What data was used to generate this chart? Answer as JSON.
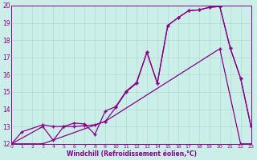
{
  "xlabel": "Windchill (Refroidissement éolien,°C)",
  "bg_color": "#cceee8",
  "line_color": "#880088",
  "grid_color": "#aaddcc",
  "xlim": [
    0,
    23
  ],
  "ylim": [
    12,
    20
  ],
  "yticks": [
    12,
    13,
    14,
    15,
    16,
    17,
    18,
    19,
    20
  ],
  "xticks": [
    0,
    1,
    2,
    3,
    4,
    5,
    6,
    7,
    8,
    9,
    10,
    11,
    12,
    13,
    14,
    15,
    16,
    17,
    18,
    19,
    20,
    21,
    22,
    23
  ],
  "line1_x": [
    0,
    1,
    3,
    4,
    5,
    6,
    7,
    8,
    9,
    10,
    11,
    12,
    13,
    14,
    15,
    16,
    17,
    18,
    19,
    20,
    21,
    22,
    23
  ],
  "line1_y": [
    12.0,
    12.7,
    13.1,
    13.0,
    13.0,
    13.2,
    13.15,
    12.55,
    13.9,
    14.15,
    15.05,
    15.55,
    17.3,
    15.5,
    18.85,
    19.3,
    19.7,
    19.75,
    19.9,
    19.95,
    17.55,
    15.8,
    13.0
  ],
  "line2_x": [
    0,
    3,
    4,
    5,
    6,
    7,
    8,
    9,
    10,
    11,
    12,
    13,
    14,
    15,
    16,
    17,
    18,
    19,
    20,
    21,
    22,
    23
  ],
  "line2_y": [
    12.0,
    13.0,
    12.2,
    13.0,
    13.0,
    13.05,
    13.1,
    13.3,
    14.1,
    15.0,
    15.5,
    17.3,
    15.5,
    18.85,
    19.3,
    19.7,
    19.75,
    19.9,
    19.95,
    17.55,
    15.8,
    13.0
  ],
  "line3_x": [
    0,
    3,
    9,
    20,
    22,
    23
  ],
  "line3_y": [
    12.0,
    12.0,
    13.3,
    17.5,
    12.0,
    12.0
  ]
}
